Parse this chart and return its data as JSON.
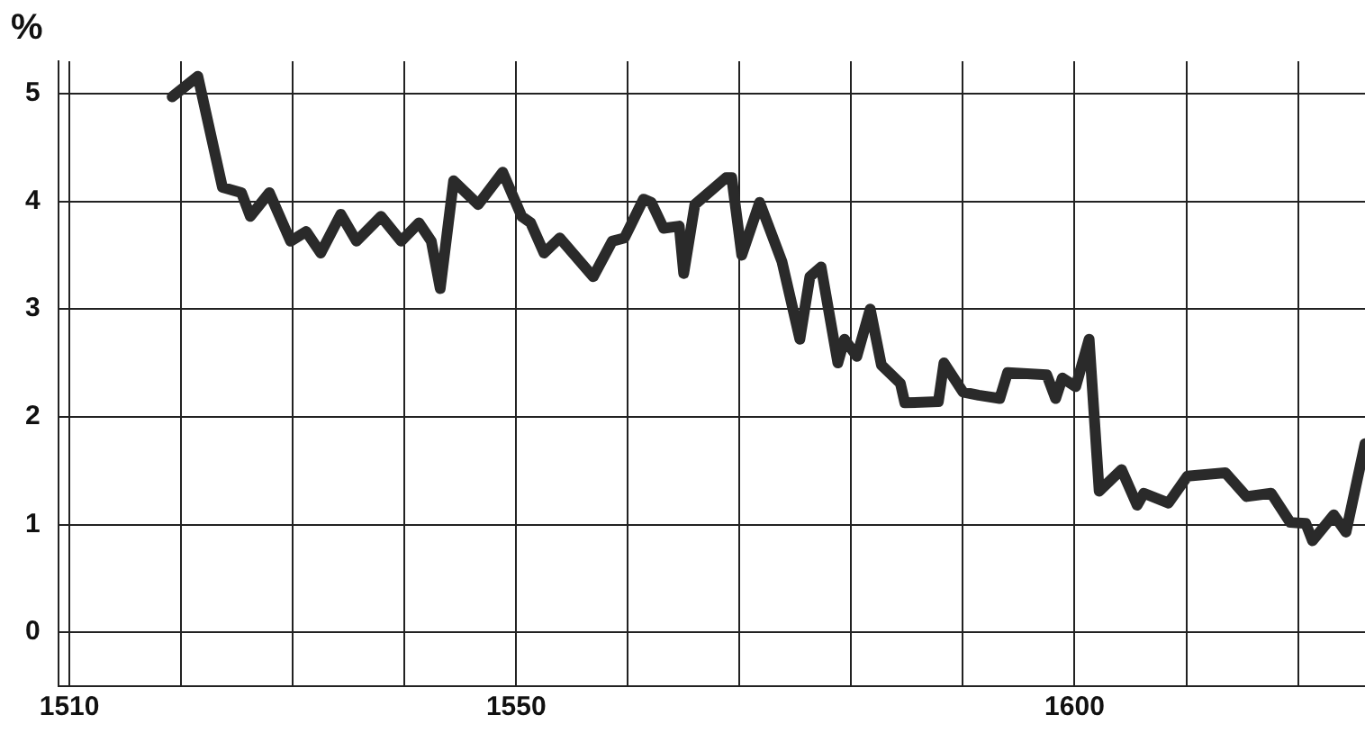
{
  "chart_data": {
    "type": "line",
    "ylabel": "%",
    "x": [
      1519.2,
      1521.5,
      1523.7,
      1525.4,
      1526.2,
      1527.9,
      1529.8,
      1531.2,
      1532.5,
      1534.3,
      1535.7,
      1537.9,
      1539.7,
      1541.3,
      1542.4,
      1543.2,
      1544.4,
      1546.6,
      1548.8,
      1550.5,
      1551.3,
      1552.5,
      1553.9,
      1556.9,
      1558.6,
      1559.7,
      1561.4,
      1562.1,
      1563.2,
      1564.6,
      1565.0,
      1566.0,
      1568.8,
      1569.3,
      1570.2,
      1571.8,
      1573.8,
      1575.4,
      1576.3,
      1577.3,
      1578.8,
      1579.4,
      1580.5,
      1581.7,
      1582.7,
      1584.4,
      1584.8,
      1587.8,
      1588.3,
      1590.0,
      1591.4,
      1593.3,
      1594.0,
      1597.5,
      1598.3,
      1598.9,
      1600.1,
      1601.3,
      1602.2,
      1604.2,
      1605.6,
      1606.2,
      1608.4,
      1610.1,
      1613.5,
      1615.4,
      1617.6,
      1619.3,
      1620.7,
      1621.3,
      1623.2,
      1624.3,
      1626
    ],
    "series": [
      {
        "color": "#2a2a2a",
        "values": [
          4.97,
          5.16,
          4.13,
          4.08,
          3.86,
          4.08,
          3.63,
          3.72,
          3.52,
          3.88,
          3.63,
          3.86,
          3.63,
          3.8,
          3.63,
          3.19,
          4.19,
          3.97,
          4.27,
          3.86,
          3.8,
          3.52,
          3.66,
          3.3,
          3.63,
          3.66,
          4.02,
          3.99,
          3.75,
          3.77,
          3.33,
          3.97,
          4.22,
          4.22,
          3.5,
          3.99,
          3.44,
          2.72,
          3.3,
          3.39,
          2.5,
          2.72,
          2.56,
          3.0,
          2.48,
          2.31,
          2.13,
          2.14,
          2.5,
          2.23,
          2.2,
          2.17,
          2.41,
          2.39,
          2.17,
          2.36,
          2.28,
          2.72,
          1.31,
          1.51,
          1.18,
          1.29,
          1.2,
          1.45,
          1.48,
          1.26,
          1.29,
          1.02,
          1.01,
          0.85,
          1.09,
          0.93,
          1.75
        ]
      }
    ],
    "xlim": [
      1509,
      1626
    ],
    "xticks": [
      1510,
      {
        "value": 1520,
        "label": null
      },
      {
        "value": 1530,
        "label": null
      },
      {
        "value": 1540,
        "label": null
      },
      1550,
      {
        "value": 1560,
        "label": null
      },
      {
        "value": 1570,
        "label": null
      },
      {
        "value": 1580,
        "label": null
      },
      {
        "value": 1590,
        "label": null
      },
      1600,
      {
        "value": 1610,
        "label": null
      },
      {
        "value": 1620,
        "label": null
      }
    ],
    "ylim": [
      -0.5,
      5.3
    ],
    "yticks": [
      0,
      1,
      2,
      3,
      4,
      5
    ],
    "grid": true,
    "legend": false,
    "marker": "none",
    "line_style": "solid"
  }
}
